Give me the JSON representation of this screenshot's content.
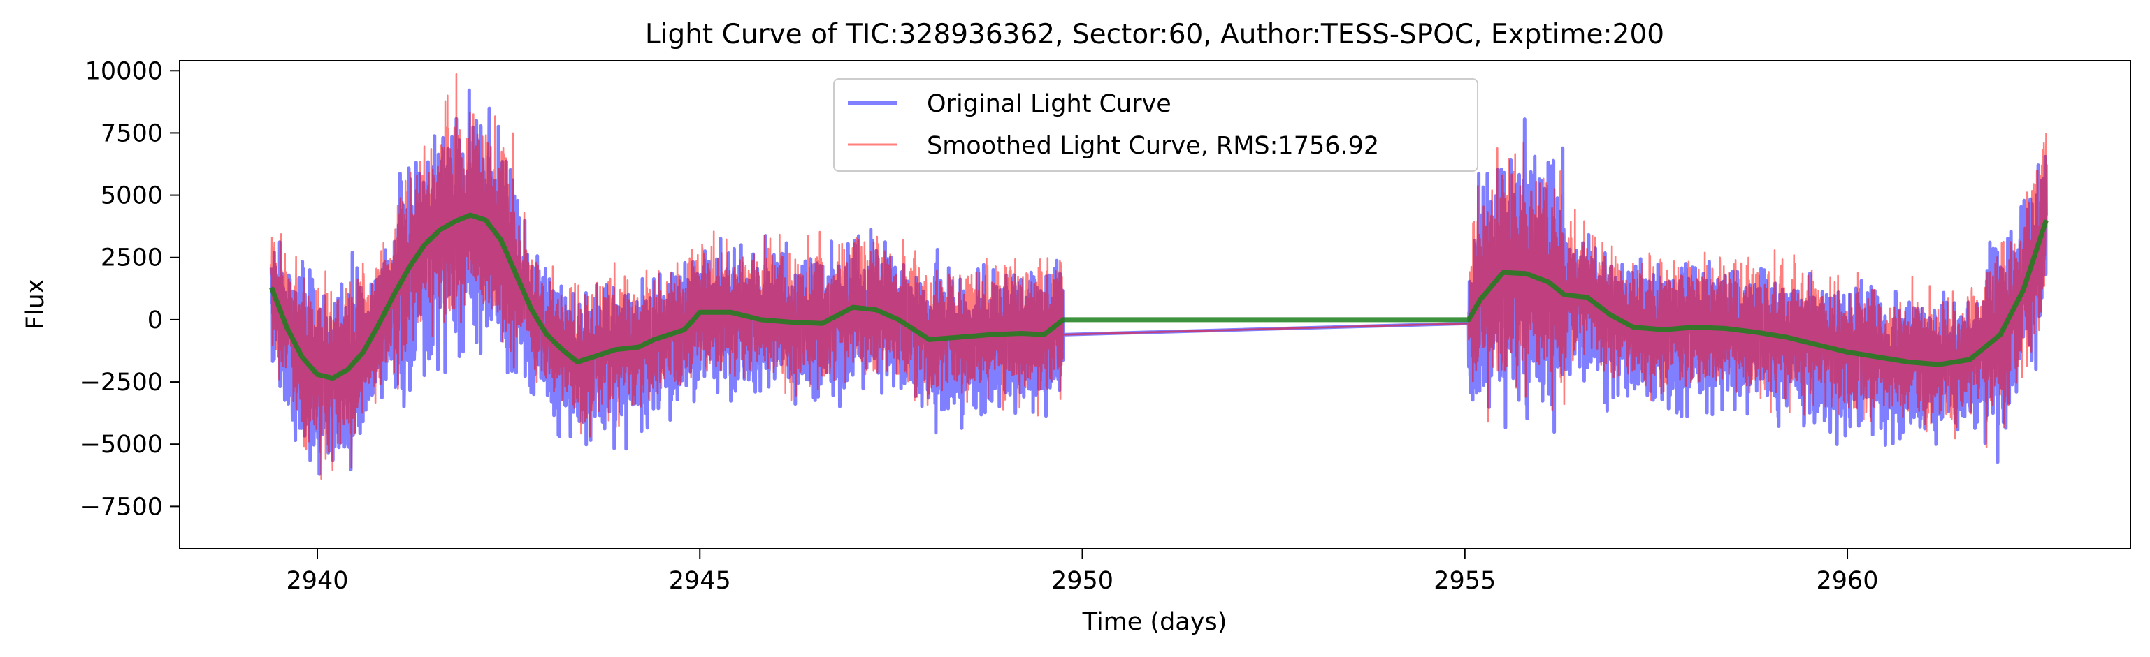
{
  "chart_data": {
    "type": "line",
    "title": "Light Curve of TIC:328936362, Sector:60, Author:TESS-SPOC, Exptime:200",
    "xlabel": "Time (days)",
    "ylabel": "Flux",
    "xlim": [
      2938.2,
      2963.7
    ],
    "ylim": [
      -9200,
      10400
    ],
    "xticks": [
      2940,
      2945,
      2950,
      2955,
      2960
    ],
    "yticks": [
      -7500,
      -5000,
      -2500,
      0,
      2500,
      5000,
      7500,
      10000
    ],
    "grid": false,
    "legend_position": "top-center",
    "gap": [
      2949.75,
      2955.05
    ],
    "series": [
      {
        "name": "Original Light Curve",
        "color": "#0000ff",
        "opacity": 0.5,
        "role": "original"
      },
      {
        "name": "Smoothed Light Curve, RMS:1756.92",
        "color": "#ff0000",
        "opacity": 0.5,
        "role": "smoothed"
      },
      {
        "name": "",
        "color": "#1b7f1b",
        "role": "trend",
        "points": [
          [
            2939.4,
            1300
          ],
          [
            2939.6,
            -300
          ],
          [
            2939.8,
            -1500
          ],
          [
            2940.0,
            -2200
          ],
          [
            2940.2,
            -2350
          ],
          [
            2940.4,
            -2000
          ],
          [
            2940.6,
            -1300
          ],
          [
            2940.8,
            -200
          ],
          [
            2941.0,
            1000
          ],
          [
            2941.2,
            2100
          ],
          [
            2941.4,
            3000
          ],
          [
            2941.6,
            3600
          ],
          [
            2941.8,
            3950
          ],
          [
            2942.0,
            4200
          ],
          [
            2942.2,
            4000
          ],
          [
            2942.4,
            3200
          ],
          [
            2942.6,
            1800
          ],
          [
            2942.8,
            400
          ],
          [
            2943.0,
            -600
          ],
          [
            2943.2,
            -1200
          ],
          [
            2943.4,
            -1700
          ],
          [
            2943.6,
            -1500
          ],
          [
            2943.9,
            -1200
          ],
          [
            2944.2,
            -1100
          ],
          [
            2944.4,
            -800
          ],
          [
            2944.6,
            -600
          ],
          [
            2944.8,
            -400
          ],
          [
            2945.0,
            300
          ],
          [
            2945.4,
            300
          ],
          [
            2945.8,
            0
          ],
          [
            2946.2,
            -100
          ],
          [
            2946.6,
            -150
          ],
          [
            2947.0,
            500
          ],
          [
            2947.3,
            400
          ],
          [
            2947.6,
            0
          ],
          [
            2948.0,
            -800
          ],
          [
            2948.4,
            -700
          ],
          [
            2948.8,
            -600
          ],
          [
            2949.2,
            -550
          ],
          [
            2949.5,
            -600
          ],
          [
            2949.75,
            0
          ],
          [
            2955.05,
            0
          ],
          [
            2955.2,
            800
          ],
          [
            2955.5,
            1900
          ],
          [
            2955.8,
            1850
          ],
          [
            2956.1,
            1500
          ],
          [
            2956.3,
            1000
          ],
          [
            2956.6,
            900
          ],
          [
            2956.9,
            200
          ],
          [
            2957.2,
            -300
          ],
          [
            2957.6,
            -400
          ],
          [
            2958.0,
            -300
          ],
          [
            2958.4,
            -350
          ],
          [
            2958.8,
            -500
          ],
          [
            2959.2,
            -700
          ],
          [
            2959.6,
            -1000
          ],
          [
            2960.0,
            -1300
          ],
          [
            2960.4,
            -1500
          ],
          [
            2960.8,
            -1700
          ],
          [
            2961.2,
            -1800
          ],
          [
            2961.6,
            -1600
          ],
          [
            2962.0,
            -600
          ],
          [
            2962.3,
            1200
          ],
          [
            2962.6,
            4000
          ]
        ]
      }
    ]
  }
}
